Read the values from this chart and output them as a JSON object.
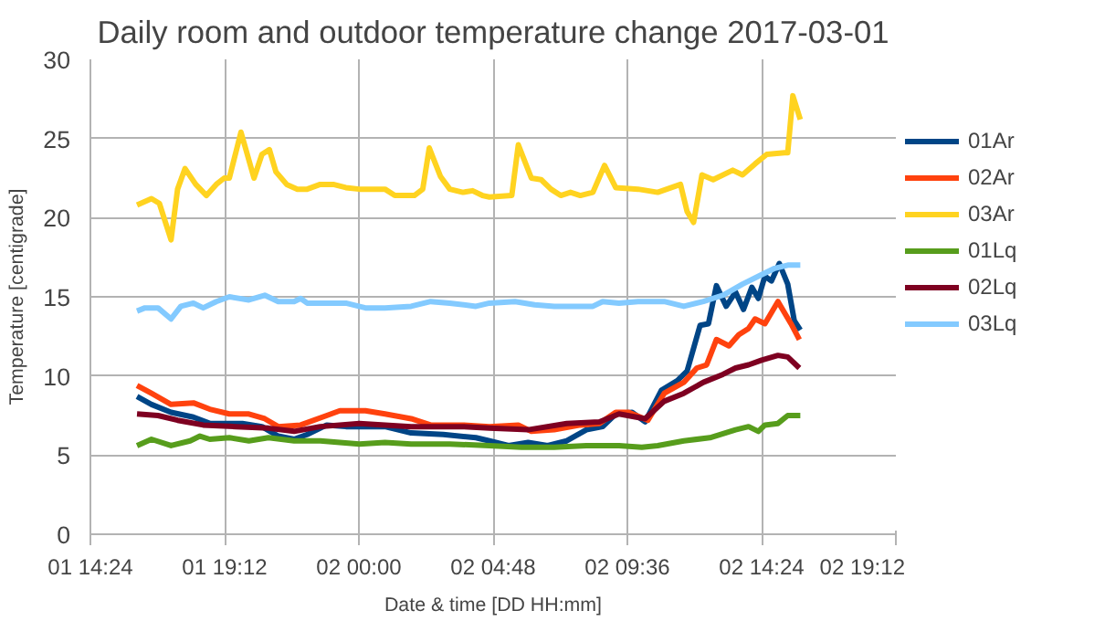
{
  "chart_data": {
    "type": "line",
    "title": "Daily room and outdoor temperature change 2017-03-01",
    "xlabel": "Date & time [DD HH:mm]",
    "ylabel": "Temperature [centigrade]",
    "xlim": [
      "2017-03-01T14:24",
      "2017-03-02T19:12"
    ],
    "xticks": [
      {
        "value": "2017-03-01T14:24",
        "label": "01 14:24"
      },
      {
        "value": "2017-03-01T19:12",
        "label": "01 19:12"
      },
      {
        "value": "2017-03-02T00:00",
        "label": "02 00:00"
      },
      {
        "value": "2017-03-02T04:48",
        "label": "02 04:48"
      },
      {
        "value": "2017-03-02T09:36",
        "label": "02 09:36"
      },
      {
        "value": "2017-03-02T14:24",
        "label": "02 14:24"
      },
      {
        "value": "2017-03-02T19:12",
        "label": "02 19:12"
      }
    ],
    "ylim": [
      0,
      30
    ],
    "yticks": [
      0,
      5,
      10,
      15,
      20,
      25,
      30
    ],
    "grid": true,
    "legend": "right",
    "marker": "none",
    "line_style": "solid",
    "series": [
      {
        "name": "01Ar",
        "color": "#004586",
        "x": [
          "2017-03-01T16:04",
          "2017-03-01T16:35",
          "2017-03-01T17:17",
          "2017-03-01T18:05",
          "2017-03-01T18:40",
          "2017-03-01T19:50",
          "2017-03-01T20:32",
          "2017-03-01T21:07",
          "2017-03-01T21:41",
          "2017-03-01T22:09",
          "2017-03-01T22:51",
          "2017-03-01T23:32",
          "2017-03-02T00:56",
          "2017-03-02T01:52",
          "2017-03-02T03:01",
          "2017-03-02T04:11",
          "2017-03-02T04:40",
          "2017-03-02T05:21",
          "2017-03-02T06:03",
          "2017-03-02T06:45",
          "2017-03-02T07:26",
          "2017-03-02T08:08",
          "2017-03-02T08:43",
          "2017-03-02T09:11",
          "2017-03-02T09:46",
          "2017-03-02T10:14",
          "2017-03-02T10:49",
          "2017-03-02T11:23",
          "2017-03-02T11:44",
          "2017-03-02T12:12",
          "2017-03-02T12:30",
          "2017-03-02T12:47",
          "2017-03-02T13:08",
          "2017-03-02T13:28",
          "2017-03-02T13:45",
          "2017-03-02T14:03",
          "2017-03-02T14:17",
          "2017-03-02T14:31",
          "2017-03-02T14:45",
          "2017-03-02T15:02",
          "2017-03-02T15:20",
          "2017-03-02T15:34",
          "2017-03-02T15:47"
        ],
        "values": [
          8.7,
          8.2,
          7.7,
          7.4,
          7.0,
          7.0,
          6.8,
          6.2,
          6.0,
          6.3,
          6.9,
          6.8,
          6.8,
          6.4,
          6.3,
          6.1,
          5.9,
          5.6,
          5.8,
          5.6,
          5.9,
          6.6,
          6.8,
          7.6,
          7.7,
          7.1,
          9.1,
          9.7,
          10.3,
          13.2,
          13.3,
          15.7,
          14.4,
          15.3,
          14.2,
          15.6,
          14.9,
          16.3,
          16.0,
          17.1,
          15.8,
          13.5,
          12.9
        ]
      },
      {
        "name": "02Ar",
        "color": "#ff420e",
        "x": [
          "2017-03-01T16:04",
          "2017-03-01T16:35",
          "2017-03-01T17:17",
          "2017-03-01T18:05",
          "2017-03-01T18:40",
          "2017-03-01T19:22",
          "2017-03-01T20:04",
          "2017-03-01T20:38",
          "2017-03-01T21:07",
          "2017-03-01T21:55",
          "2017-03-01T22:51",
          "2017-03-01T23:19",
          "2017-03-02T00:14",
          "2017-03-02T00:56",
          "2017-03-02T01:52",
          "2017-03-02T02:34",
          "2017-03-02T03:43",
          "2017-03-02T04:40",
          "2017-03-02T05:42",
          "2017-03-02T06:10",
          "2017-03-02T06:59",
          "2017-03-02T07:55",
          "2017-03-02T08:36",
          "2017-03-02T09:11",
          "2017-03-02T09:39",
          "2017-03-02T10:20",
          "2017-03-02T10:55",
          "2017-03-02T11:37",
          "2017-03-02T12:05",
          "2017-03-02T12:26",
          "2017-03-02T12:47",
          "2017-03-02T13:14",
          "2017-03-02T13:35",
          "2017-03-02T13:56",
          "2017-03-02T14:10",
          "2017-03-02T14:31",
          "2017-03-02T14:59",
          "2017-03-02T15:27",
          "2017-03-02T15:45"
        ],
        "values": [
          9.4,
          8.9,
          8.2,
          8.3,
          7.9,
          7.6,
          7.6,
          7.3,
          6.8,
          6.9,
          7.5,
          7.8,
          7.8,
          7.6,
          7.3,
          6.9,
          6.9,
          6.8,
          6.9,
          6.5,
          6.6,
          6.9,
          7.0,
          7.7,
          7.7,
          7.2,
          8.9,
          9.6,
          10.5,
          10.7,
          12.3,
          11.9,
          12.6,
          13.0,
          13.6,
          13.3,
          14.7,
          13.3,
          12.3
        ]
      },
      {
        "name": "03Ar",
        "color": "#ffd320",
        "x": [
          "2017-03-01T16:04",
          "2017-03-01T16:35",
          "2017-03-01T16:52",
          "2017-03-01T17:17",
          "2017-03-01T17:31",
          "2017-03-01T17:47",
          "2017-03-01T18:10",
          "2017-03-01T18:33",
          "2017-03-01T18:54",
          "2017-03-01T19:11",
          "2017-03-01T19:22",
          "2017-03-01T19:47",
          "2017-03-01T20:15",
          "2017-03-01T20:32",
          "2017-03-01T20:48",
          "2017-03-01T21:02",
          "2017-03-01T21:25",
          "2017-03-01T21:48",
          "2017-03-01T22:09",
          "2017-03-01T22:37",
          "2017-03-01T23:05",
          "2017-03-01T23:32",
          "2017-03-02T00:01",
          "2017-03-02T00:56",
          "2017-03-02T01:17",
          "2017-03-02T01:59",
          "2017-03-02T02:17",
          "2017-03-02T02:31",
          "2017-03-02T02:55",
          "2017-03-02T03:15",
          "2017-03-02T03:43",
          "2017-03-02T04:04",
          "2017-03-02T04:25",
          "2017-03-02T04:40",
          "2017-03-02T05:28",
          "2017-03-02T05:42",
          "2017-03-02T06:10",
          "2017-03-02T06:31",
          "2017-03-02T06:52",
          "2017-03-02T07:13",
          "2017-03-02T07:34",
          "2017-03-02T07:55",
          "2017-03-02T08:22",
          "2017-03-02T08:47",
          "2017-03-02T09:11",
          "2017-03-02T09:59",
          "2017-03-02T10:41",
          "2017-03-02T11:30",
          "2017-03-02T11:44",
          "2017-03-02T11:58",
          "2017-03-02T12:16",
          "2017-03-02T12:40",
          "2017-03-02T13:22",
          "2017-03-02T13:43",
          "2017-03-02T14:10",
          "2017-03-02T14:35",
          "2017-03-02T15:13",
          "2017-03-02T15:20",
          "2017-03-02T15:31",
          "2017-03-02T15:47"
        ],
        "values": [
          20.8,
          21.2,
          20.9,
          18.6,
          21.8,
          23.1,
          22.1,
          21.4,
          22.1,
          22.5,
          22.5,
          25.4,
          22.5,
          24.0,
          24.3,
          22.9,
          22.1,
          21.8,
          21.8,
          22.1,
          22.1,
          21.9,
          21.8,
          21.8,
          21.4,
          21.4,
          21.8,
          24.4,
          22.6,
          21.8,
          21.6,
          21.7,
          21.4,
          21.3,
          21.4,
          24.6,
          22.5,
          22.4,
          21.8,
          21.4,
          21.6,
          21.4,
          21.6,
          23.3,
          21.9,
          21.8,
          21.6,
          22.1,
          20.4,
          19.7,
          22.7,
          22.4,
          23.0,
          22.7,
          23.4,
          24.0,
          24.1,
          24.1,
          27.7,
          26.2
        ]
      },
      {
        "name": "01Lq",
        "color": "#579d1c",
        "x": [
          "2017-03-01T16:04",
          "2017-03-01T16:35",
          "2017-03-01T17:17",
          "2017-03-01T17:58",
          "2017-03-01T18:19",
          "2017-03-01T18:40",
          "2017-03-01T19:22",
          "2017-03-01T20:04",
          "2017-03-01T20:46",
          "2017-03-01T21:41",
          "2017-03-01T22:37",
          "2017-03-02T00:01",
          "2017-03-02T00:56",
          "2017-03-02T01:52",
          "2017-03-02T03:15",
          "2017-03-02T04:40",
          "2017-03-02T05:49",
          "2017-03-02T06:59",
          "2017-03-02T08:08",
          "2017-03-02T09:18",
          "2017-03-02T10:07",
          "2017-03-02T10:41",
          "2017-03-02T11:37",
          "2017-03-02T12:33",
          "2017-03-02T13:28",
          "2017-03-02T13:56",
          "2017-03-02T14:17",
          "2017-03-02T14:31",
          "2017-03-02T14:59",
          "2017-03-02T15:20",
          "2017-03-02T15:47"
        ],
        "values": [
          5.6,
          6.0,
          5.6,
          5.9,
          6.2,
          6.0,
          6.1,
          5.9,
          6.1,
          5.9,
          5.9,
          5.7,
          5.8,
          5.7,
          5.7,
          5.6,
          5.5,
          5.5,
          5.6,
          5.6,
          5.5,
          5.6,
          5.9,
          6.1,
          6.6,
          6.8,
          6.5,
          6.9,
          7.0,
          7.5,
          7.5
        ]
      },
      {
        "name": "02Lq",
        "color": "#7e0021",
        "x": [
          "2017-03-01T16:04",
          "2017-03-01T16:49",
          "2017-03-01T17:31",
          "2017-03-01T18:26",
          "2017-03-01T19:36",
          "2017-03-01T20:46",
          "2017-03-01T21:41",
          "2017-03-01T22:37",
          "2017-03-02T00:01",
          "2017-03-02T01:52",
          "2017-03-02T03:43",
          "2017-03-02T04:40",
          "2017-03-02T06:03",
          "2017-03-02T07:26",
          "2017-03-02T08:36",
          "2017-03-02T09:18",
          "2017-03-02T10:14",
          "2017-03-02T10:55",
          "2017-03-02T11:37",
          "2017-03-02T12:19",
          "2017-03-02T13:01",
          "2017-03-02T13:28",
          "2017-03-02T13:56",
          "2017-03-02T14:24",
          "2017-03-02T14:59",
          "2017-03-02T15:20",
          "2017-03-02T15:45"
        ],
        "values": [
          7.6,
          7.5,
          7.2,
          6.9,
          6.8,
          6.7,
          6.5,
          6.8,
          7.0,
          6.8,
          6.8,
          6.7,
          6.6,
          7.0,
          7.1,
          7.6,
          7.3,
          8.4,
          8.9,
          9.6,
          10.1,
          10.5,
          10.7,
          11.0,
          11.3,
          11.2,
          10.5
        ]
      },
      {
        "name": "03Lq",
        "color": "#83caff",
        "x": [
          "2017-03-01T16:04",
          "2017-03-01T16:21",
          "2017-03-01T16:49",
          "2017-03-01T17:17",
          "2017-03-01T17:38",
          "2017-03-01T18:05",
          "2017-03-01T18:26",
          "2017-03-01T18:54",
          "2017-03-01T19:22",
          "2017-03-01T20:04",
          "2017-03-01T20:38",
          "2017-03-01T21:07",
          "2017-03-01T21:41",
          "2017-03-01T21:55",
          "2017-03-01T22:09",
          "2017-03-01T23:32",
          "2017-03-02T00:14",
          "2017-03-02T00:56",
          "2017-03-02T01:52",
          "2017-03-02T02:34",
          "2017-03-02T03:15",
          "2017-03-02T04:11",
          "2017-03-02T04:40",
          "2017-03-02T05:35",
          "2017-03-02T06:17",
          "2017-03-02T06:59",
          "2017-03-02T08:22",
          "2017-03-02T08:43",
          "2017-03-02T09:18",
          "2017-03-02T09:59",
          "2017-03-02T10:55",
          "2017-03-02T11:37",
          "2017-03-02T12:19",
          "2017-03-02T13:01",
          "2017-03-02T13:43",
          "2017-03-02T14:24",
          "2017-03-02T14:52",
          "2017-03-02T15:20",
          "2017-03-02T15:47"
        ],
        "values": [
          14.1,
          14.3,
          14.3,
          13.6,
          14.4,
          14.6,
          14.3,
          14.7,
          15.0,
          14.8,
          15.1,
          14.7,
          14.7,
          14.9,
          14.6,
          14.6,
          14.3,
          14.3,
          14.4,
          14.7,
          14.6,
          14.4,
          14.6,
          14.7,
          14.5,
          14.4,
          14.4,
          14.7,
          14.6,
          14.7,
          14.7,
          14.4,
          14.7,
          15.1,
          15.8,
          16.4,
          16.8,
          17.0,
          17.0
        ]
      }
    ]
  }
}
